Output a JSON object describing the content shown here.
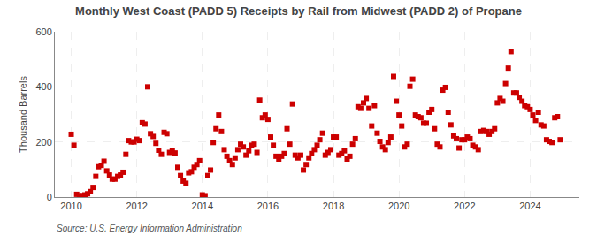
{
  "chart_data": {
    "type": "scatter",
    "title": "Monthly West Coast (PADD 5) Receipts by Rail from Midwest (PADD 2) of Propane",
    "y_label": "Thousand Barrels",
    "annotations": [
      "Source: U.S. Energy Information Administration"
    ],
    "color": "#cc0000",
    "marker": "square",
    "grid": true,
    "xlim": [
      2009.5,
      2025.5
    ],
    "xticks": [
      2010,
      2012,
      2014,
      2016,
      2018,
      2020,
      2022,
      2024
    ],
    "ylim": [
      0,
      600
    ],
    "yticks": [
      0,
      200,
      400,
      600
    ],
    "x": [
      2010.0,
      2010.083,
      2010.167,
      2010.25,
      2010.333,
      2010.417,
      2010.5,
      2010.583,
      2010.667,
      2010.75,
      2010.833,
      2010.917,
      2011.0,
      2011.083,
      2011.167,
      2011.25,
      2011.333,
      2011.417,
      2011.5,
      2011.583,
      2011.667,
      2011.75,
      2011.833,
      2011.917,
      2012.0,
      2012.083,
      2012.167,
      2012.25,
      2012.333,
      2012.417,
      2012.5,
      2012.583,
      2012.667,
      2012.75,
      2012.833,
      2012.917,
      2013.0,
      2013.083,
      2013.167,
      2013.25,
      2013.333,
      2013.417,
      2013.5,
      2013.583,
      2013.667,
      2013.75,
      2013.833,
      2013.917,
      2014.0,
      2014.083,
      2014.167,
      2014.25,
      2014.333,
      2014.417,
      2014.5,
      2014.583,
      2014.667,
      2014.75,
      2014.833,
      2014.917,
      2015.0,
      2015.083,
      2015.167,
      2015.25,
      2015.333,
      2015.417,
      2015.5,
      2015.583,
      2015.667,
      2015.75,
      2015.833,
      2015.917,
      2016.0,
      2016.083,
      2016.167,
      2016.25,
      2016.333,
      2016.417,
      2016.5,
      2016.583,
      2016.667,
      2016.75,
      2016.833,
      2016.917,
      2017.0,
      2017.083,
      2017.167,
      2017.25,
      2017.333,
      2017.417,
      2017.5,
      2017.583,
      2017.667,
      2017.75,
      2017.833,
      2017.917,
      2018.0,
      2018.083,
      2018.167,
      2018.25,
      2018.333,
      2018.417,
      2018.5,
      2018.583,
      2018.667,
      2018.75,
      2018.833,
      2018.917,
      2019.0,
      2019.083,
      2019.167,
      2019.25,
      2019.333,
      2019.417,
      2019.5,
      2019.583,
      2019.667,
      2019.75,
      2019.833,
      2019.917,
      2020.0,
      2020.083,
      2020.167,
      2020.25,
      2020.333,
      2020.417,
      2020.5,
      2020.583,
      2020.667,
      2020.75,
      2020.833,
      2020.917,
      2021.0,
      2021.083,
      2021.167,
      2021.25,
      2021.333,
      2021.417,
      2021.5,
      2021.583,
      2021.667,
      2021.75,
      2021.833,
      2021.917,
      2022.0,
      2022.083,
      2022.167,
      2022.25,
      2022.333,
      2022.417,
      2022.5,
      2022.583,
      2022.667,
      2022.75,
      2022.833,
      2022.917,
      2023.0,
      2023.083,
      2023.167,
      2023.25,
      2023.333,
      2023.417,
      2023.5,
      2023.583,
      2023.667,
      2023.75,
      2023.833,
      2023.917,
      2024.0,
      2024.083,
      2024.167,
      2024.25,
      2024.333,
      2024.417,
      2024.5,
      2024.583,
      2024.667,
      2024.75,
      2024.833,
      2024.917
    ],
    "values": [
      228,
      188,
      10,
      5,
      5,
      8,
      12,
      20,
      35,
      75,
      110,
      115,
      130,
      95,
      80,
      65,
      65,
      75,
      80,
      90,
      155,
      205,
      200,
      200,
      210,
      205,
      270,
      265,
      400,
      230,
      220,
      195,
      170,
      155,
      235,
      230,
      162,
      168,
      160,
      108,
      78,
      58,
      50,
      88,
      92,
      108,
      118,
      132,
      8,
      5,
      78,
      98,
      198,
      248,
      298,
      238,
      172,
      148,
      132,
      118,
      142,
      172,
      192,
      182,
      152,
      168,
      188,
      192,
      162,
      352,
      288,
      298,
      282,
      218,
      188,
      148,
      138,
      148,
      158,
      248,
      192,
      338,
      152,
      142,
      152,
      98,
      118,
      142,
      158,
      172,
      188,
      208,
      232,
      152,
      162,
      172,
      218,
      218,
      152,
      158,
      168,
      138,
      148,
      192,
      212,
      328,
      322,
      342,
      358,
      322,
      258,
      332,
      232,
      202,
      182,
      172,
      198,
      218,
      438,
      348,
      298,
      258,
      182,
      192,
      402,
      428,
      298,
      292,
      288,
      268,
      268,
      308,
      318,
      248,
      192,
      182,
      388,
      398,
      308,
      262,
      222,
      212,
      178,
      208,
      208,
      218,
      212,
      188,
      182,
      172,
      238,
      242,
      238,
      228,
      238,
      248,
      342,
      358,
      348,
      412,
      468,
      528,
      378,
      378,
      362,
      348,
      332,
      328,
      318,
      298,
      278,
      308,
      262,
      258,
      208,
      202,
      198,
      288,
      292,
      208
    ]
  }
}
